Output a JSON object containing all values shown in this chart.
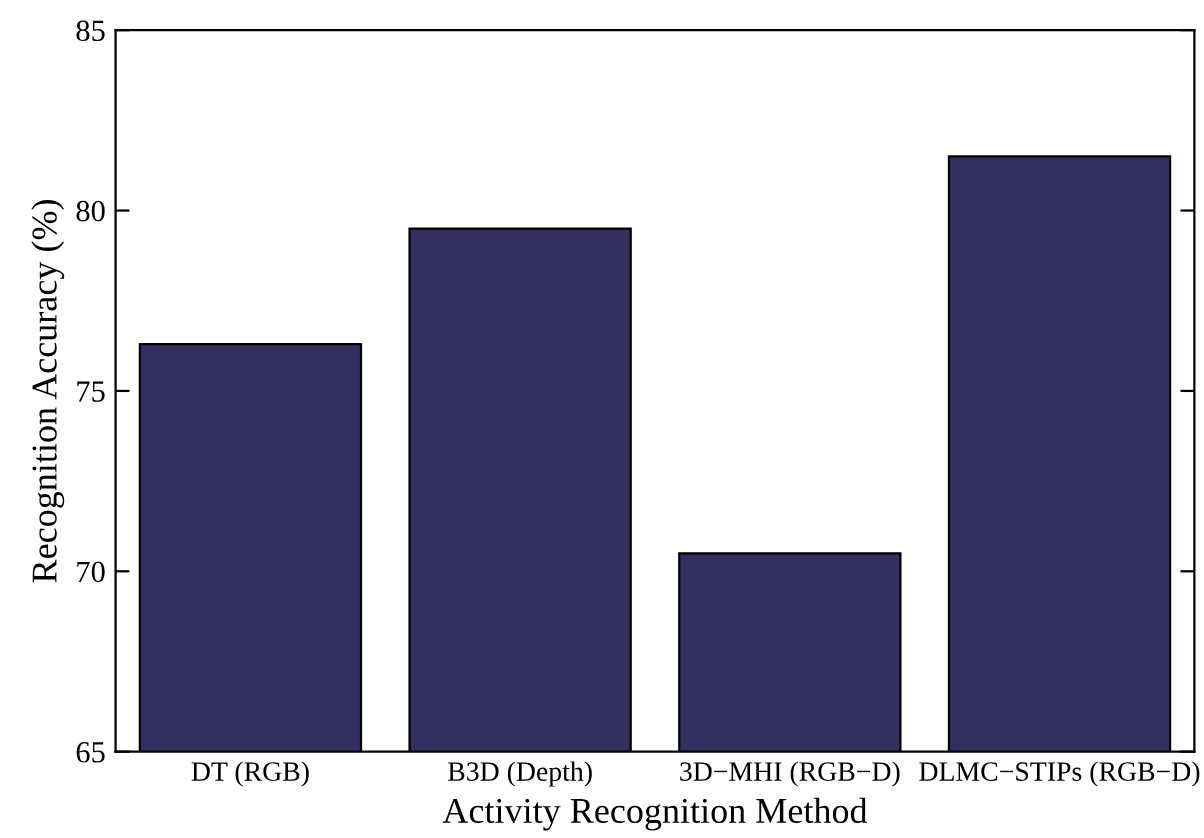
{
  "chart_data": {
    "type": "bar",
    "xlabel": "Activity Recognition Method",
    "ylabel": "Recognition Accuracy (%)",
    "categories": [
      "DT (RGB)",
      "B3D (Depth)",
      "3D−MHI (RGB−D)",
      "DLMC−STIPs (RGB−D)"
    ],
    "values": [
      76.3,
      79.5,
      70.5,
      81.5
    ],
    "color": "#332f5e",
    "ylim": [
      65,
      85
    ],
    "yticks": [
      65,
      70,
      75,
      80,
      85
    ],
    "grid": false,
    "legend": false
  }
}
